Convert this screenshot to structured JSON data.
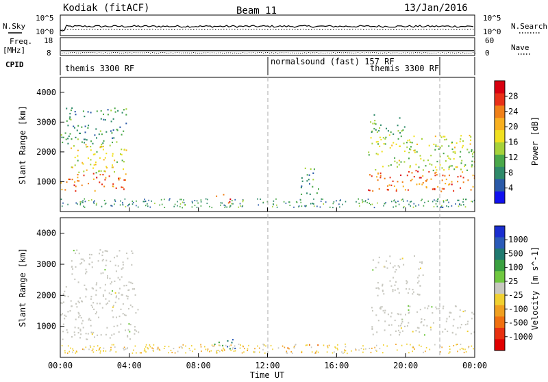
{
  "header": {
    "station": "Kodiak (fitACF)",
    "beam": "Beam 11",
    "date": "13/Jan/2016"
  },
  "strip": {
    "nsky_label": "N.Sky",
    "nsky_ticks": [
      "10^5",
      "10^0"
    ],
    "nsearch_label": "N.Search",
    "nsearch_ticks": [
      "10^5",
      "10^0"
    ],
    "freq_label": "Freq.",
    "freq_unit": "[MHz]",
    "freq_ticks": [
      "18",
      "8"
    ],
    "nave_label": "Nave",
    "nave_ticks": [
      "60",
      "0"
    ],
    "cpid_label": "CPID",
    "cpid_segments": [
      {
        "label": "themis 3300 RF",
        "start_hour": 0
      },
      {
        "label": "normalsound (fast) 157 RF",
        "start_hour": 12
      },
      {
        "label": "themis 3300 RF",
        "start_hour": 22
      }
    ]
  },
  "axes": {
    "time_ticks": [
      "00:00",
      "04:00",
      "08:00",
      "12:00",
      "16:00",
      "20:00",
      "00:00"
    ],
    "xlabel": "Time UT",
    "ylabel": "Slant Range [km]",
    "range_ticks": [
      "1000",
      "2000",
      "3000",
      "4000"
    ]
  },
  "power_colorbar": {
    "label": "Power [dB]",
    "ticks": [
      "4",
      "8",
      "12",
      "16",
      "20",
      "24",
      "28"
    ],
    "colors": [
      "#1010f0",
      "#2a5aa8",
      "#2f8a6a",
      "#4aa84a",
      "#a6d23a",
      "#f0e020",
      "#f8b020",
      "#f08018",
      "#e83018",
      "#d80010"
    ]
  },
  "velocity_colorbar": {
    "label": "Velocity [m s^-1]",
    "ticks": [
      "1000",
      "500",
      "100",
      "25",
      "-25",
      "-100",
      "-500",
      "-1000"
    ],
    "colors": [
      "#1a2ed0",
      "#2a5ab8",
      "#207a70",
      "#3aa040",
      "#70c840",
      "#c8c8c0",
      "#f0d030",
      "#f0a020",
      "#f07010",
      "#e83010",
      "#e00000"
    ]
  },
  "chart_data": [
    {
      "type": "heatmap",
      "title": "Beam 11",
      "xlabel": "Time UT",
      "ylabel": "Slant Range [km]",
      "x_range_hours": [
        0,
        24
      ],
      "ylim": [
        0,
        4500
      ],
      "colorbar": "Power [dB]",
      "colorbar_range": [
        0,
        30
      ],
      "regions": [
        {
          "t0": 0.0,
          "t1": 3.8,
          "r0": 700,
          "r1": 1300,
          "power": 24
        },
        {
          "t0": 0.5,
          "t1": 3.8,
          "r0": 1300,
          "r1": 2300,
          "power": 16
        },
        {
          "t0": 0.0,
          "t1": 3.8,
          "r0": 2300,
          "r1": 3500,
          "power": 8
        },
        {
          "t0": 8.8,
          "t1": 10.2,
          "r0": 300,
          "r1": 600,
          "power": 26
        },
        {
          "t0": 13.8,
          "t1": 15.0,
          "r0": 600,
          "r1": 1500,
          "power": 8
        },
        {
          "t0": 17.8,
          "t1": 24.0,
          "r0": 700,
          "r1": 1400,
          "power": 24
        },
        {
          "t0": 17.8,
          "t1": 24.0,
          "r0": 1400,
          "r1": 2600,
          "power": 14
        },
        {
          "t0": 17.8,
          "t1": 20.0,
          "r0": 2600,
          "r1": 3300,
          "power": 10
        }
      ]
    },
    {
      "type": "heatmap",
      "xlabel": "Time UT",
      "ylabel": "Slant Range [km]",
      "x_range_hours": [
        0,
        24
      ],
      "ylim": [
        0,
        4500
      ],
      "colorbar": "Velocity [m s^-1]",
      "colorbar_range": [
        -1000,
        1000
      ],
      "regions": [
        {
          "t0": 0.0,
          "t1": 4.5,
          "r0": 600,
          "r1": 2300,
          "velocity": 0
        },
        {
          "t0": 0.5,
          "t1": 4.2,
          "r0": 2300,
          "r1": 3500,
          "velocity": 0
        },
        {
          "t0": 8.8,
          "t1": 10.2,
          "r0": 300,
          "r1": 600,
          "velocity": 60
        },
        {
          "t0": 13.0,
          "t1": 15.0,
          "r0": 300,
          "r1": 600,
          "velocity": -200
        },
        {
          "t0": 18.0,
          "t1": 24.0,
          "r0": 700,
          "r1": 1700,
          "velocity": 0
        },
        {
          "t0": 18.0,
          "t1": 21.0,
          "r0": 2000,
          "r1": 3300,
          "velocity": 0
        }
      ]
    }
  ]
}
